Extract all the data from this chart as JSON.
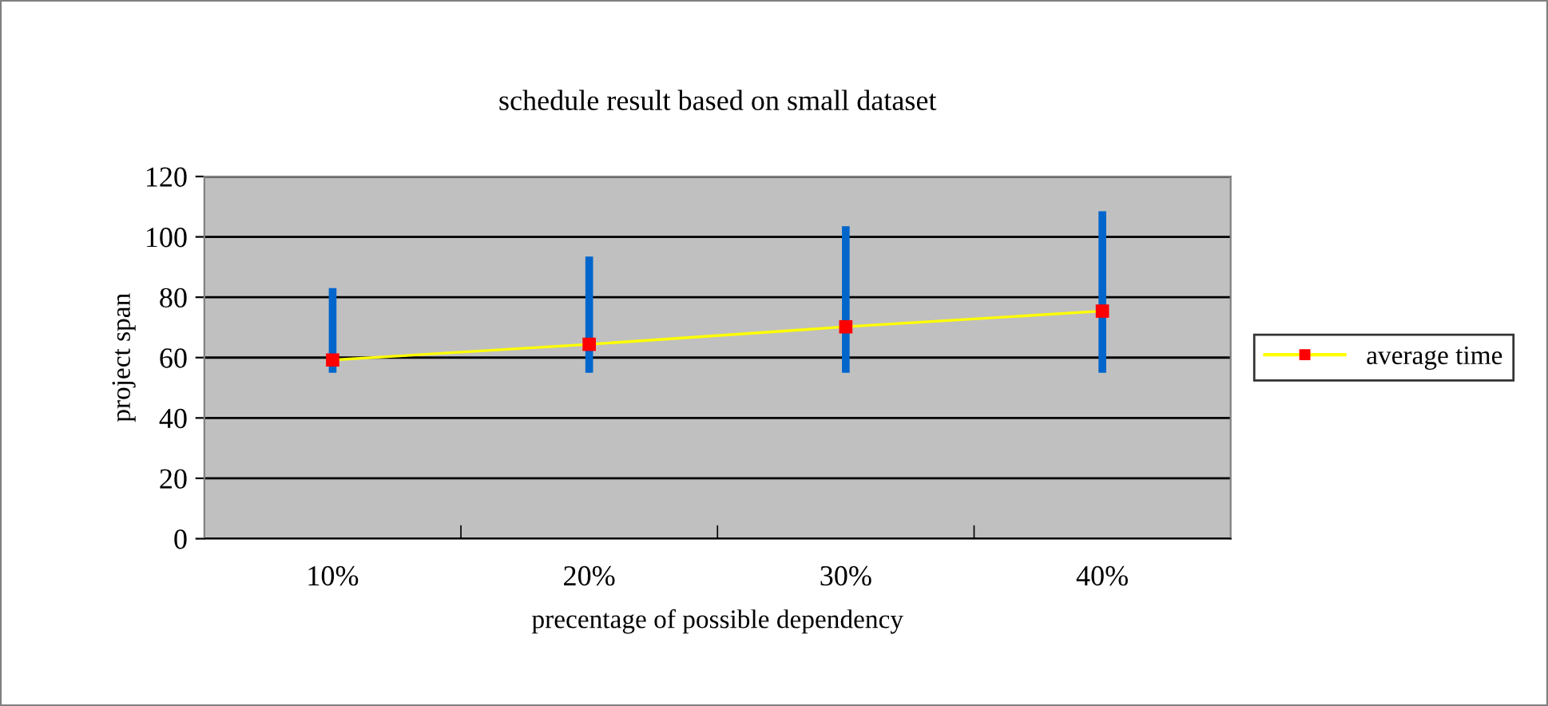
{
  "chart_data": {
    "type": "line",
    "title": "schedule result based on small dataset",
    "xlabel": "precentage of possible dependency",
    "ylabel": "project span",
    "categories": [
      "10%",
      "20%",
      "30%",
      "40%"
    ],
    "series": [
      {
        "type": "bar",
        "color": "#0066cc",
        "base": [
          55,
          55,
          55,
          55
        ],
        "values": [
          28,
          38.5,
          48.5,
          53.5
        ]
      },
      {
        "name": "average time",
        "color": "#ffff00",
        "values": [
          59.2,
          64.4,
          70.2,
          75.4
        ]
      },
      {
        "type": "scatter",
        "color": "#ff0000",
        "values": [
          59.2,
          64.4,
          70.2,
          75.4
        ]
      }
    ],
    "ylim": [
      0,
      120
    ],
    "yticks": [
      0,
      20,
      40,
      60,
      80,
      100,
      120
    ],
    "grid": "y",
    "legend": "right"
  }
}
